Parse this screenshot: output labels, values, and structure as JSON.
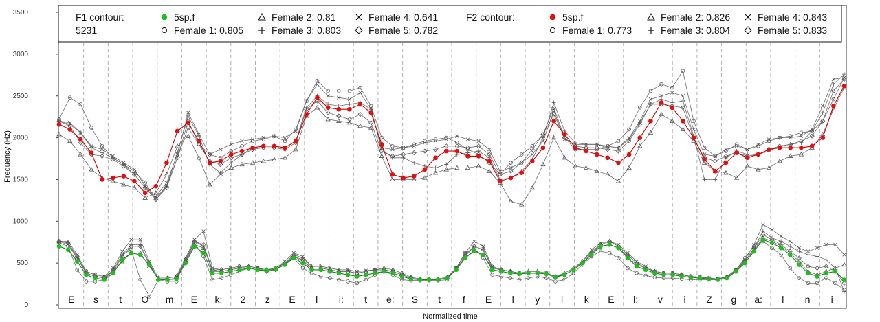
{
  "chart_data": {
    "type": "line",
    "title": "",
    "xlabel": "Normalized time",
    "ylabel": "Frequency (Hz)",
    "ylim": [
      0,
      3600
    ],
    "yticks": [
      0,
      500,
      1000,
      1500,
      2000,
      2500,
      3000,
      3500
    ],
    "xlim": [
      0,
      1
    ],
    "grid": "vertical dashed segment boundaries",
    "legend_position": "top",
    "legend": {
      "f1_heading": "F1 contour:",
      "f1_speaker": "5231",
      "f2_heading": "F2 contour:",
      "f1_entries": [
        "5sp.f",
        "Female 1: 0.805",
        "Female 2: 0.81",
        "Female 3: 0.803",
        "Female 4: 0.641",
        "Female 5: 0.782"
      ],
      "f2_entries": [
        "5sp.f",
        "Female 1: 0.773",
        "Female 2: 0.826",
        "Female 3: 0.804",
        "Female 4: 0.843",
        "Female 5: 0.833"
      ]
    },
    "segments": [
      "E",
      "s",
      "t",
      "O",
      "m",
      "E",
      "k:",
      "2",
      "z",
      "E",
      "l",
      "i:",
      "t",
      "e:",
      "S",
      "t",
      "f",
      "E",
      "l",
      "y",
      "l",
      "k",
      "E",
      "l:",
      "v",
      "i",
      "Z",
      "g",
      "a:",
      "l",
      "n",
      "i"
    ],
    "colors": {
      "f1_mean": "#22bb22",
      "f2_mean": "#dd1111",
      "female": "#555555",
      "grid": "#b0b0b0"
    },
    "series": [
      {
        "name": "5sp.f",
        "formant": "F2",
        "values": [
          2160,
          2100,
          1980,
          1820,
          1500,
          1520,
          1540,
          1480,
          1340,
          1420,
          1700,
          2080,
          2180,
          1960,
          1700,
          1720,
          1800,
          1840,
          1880,
          1900,
          1900,
          1880,
          1960,
          2280,
          2480,
          2360,
          2340,
          2340,
          2400,
          2300,
          1920,
          1560,
          1520,
          1540,
          1620,
          1760,
          1840,
          1840,
          1780,
          1780,
          1720,
          1480,
          1520,
          1580,
          1720,
          1880,
          2200,
          2040,
          1880,
          1840,
          1800,
          1760,
          1700,
          1800,
          2000,
          2200,
          2420,
          2360,
          2200,
          2000,
          1740,
          1600,
          1700,
          1820,
          1760,
          1800,
          1860,
          1880,
          1880,
          1880,
          1900,
          2000,
          2380,
          2620
        ]
      },
      {
        "name": "Female 1: 0.773",
        "formant": "F2",
        "values": [
          2220,
          2480,
          2400,
          2120,
          1900,
          1760,
          1680,
          1600,
          1460,
          1260,
          1420,
          1760,
          2120,
          1920,
          1800,
          1760,
          1840,
          1900,
          1960,
          1980,
          2020,
          1960,
          2100,
          2440,
          2680,
          2560,
          2560,
          2560,
          2600,
          2380,
          2000,
          1900,
          1880,
          1920,
          1960,
          1980,
          2000,
          1940,
          1860,
          1800,
          1700,
          1560,
          1700,
          1800,
          1900,
          2040,
          2280,
          2000,
          1860,
          1860,
          1860,
          1900,
          1960,
          2100,
          2360,
          2560,
          2640,
          2600,
          2800,
          2200,
          1880,
          1780,
          1840,
          1920,
          1860,
          1900,
          1960,
          2000,
          2020,
          2060,
          2080,
          2200,
          2460,
          2720
        ]
      },
      {
        "name": "Female 2: 0.826",
        "formant": "F2",
        "values": [
          2040,
          1960,
          1800,
          1620,
          1520,
          1480,
          1440,
          1400,
          1280,
          1340,
          1560,
          1900,
          2020,
          1760,
          1440,
          1560,
          1640,
          1680,
          1700,
          1720,
          1740,
          1760,
          1860,
          2260,
          2360,
          2220,
          2200,
          2180,
          2140,
          2120,
          1780,
          1500,
          1500,
          1500,
          1520,
          1580,
          1620,
          1640,
          1640,
          1660,
          1600,
          1460,
          1240,
          1200,
          1400,
          1680,
          2000,
          1760,
          1660,
          1640,
          1600,
          1560,
          1480,
          1640,
          1900,
          2060,
          2280,
          2200,
          2100,
          1960,
          1700,
          1600,
          1580,
          1520,
          1660,
          1620,
          1640,
          1720,
          1780,
          1800,
          1880,
          2040,
          2340,
          2600
        ]
      },
      {
        "name": "Female 3: 0.804",
        "formant": "F2",
        "values": [
          2200,
          2160,
          2060,
          1880,
          1820,
          1760,
          1680,
          1560,
          1400,
          1280,
          1420,
          1820,
          2260,
          2020,
          1680,
          1580,
          1700,
          1800,
          1880,
          1900,
          1900,
          1880,
          1960,
          2360,
          2500,
          2400,
          2380,
          2400,
          2420,
          2340,
          1860,
          1760,
          1760,
          1700,
          1660,
          1640,
          1680,
          1800,
          1820,
          1840,
          1760,
          1500,
          1520,
          1600,
          1740,
          2000,
          2420,
          2080,
          1940,
          1920,
          1920,
          1880,
          1880,
          1980,
          2180,
          2400,
          2460,
          2420,
          2440,
          2020,
          1500,
          1500,
          1760,
          1840,
          1800,
          1800,
          1840,
          1900,
          1920,
          1940,
          2080,
          2300,
          2640,
          2760
        ]
      },
      {
        "name": "Female 4: 0.843",
        "formant": "F2",
        "values": [
          2200,
          2180,
          2060,
          1900,
          1860,
          1780,
          1700,
          1620,
          1420,
          1300,
          1460,
          1800,
          2300,
          2040,
          1800,
          1860,
          1920,
          1960,
          1980,
          2000,
          2020,
          2000,
          2080,
          2440,
          2640,
          2500,
          2480,
          2460,
          2540,
          2340,
          1880,
          1860,
          1880,
          1900,
          1940,
          1960,
          1980,
          2020,
          1980,
          1960,
          1860,
          1600,
          1640,
          1700,
          1800,
          1960,
          2320,
          1980,
          1920,
          1920,
          1920,
          1900,
          1880,
          2000,
          2200,
          2460,
          2500,
          2540,
          2500,
          2100,
          1800,
          1780,
          1860,
          1900,
          1860,
          1920,
          1980,
          2000,
          2000,
          2020,
          2100,
          2380,
          2700,
          2720
        ]
      },
      {
        "name": "Female 5: 0.833",
        "formant": "F2",
        "values": [
          2200,
          2140,
          1940,
          1800,
          1780,
          1740,
          1660,
          1560,
          1400,
          1260,
          1400,
          1760,
          2200,
          1920,
          1720,
          1680,
          1760,
          1800,
          1860,
          1880,
          1880,
          1860,
          1940,
          2340,
          2440,
          2300,
          2260,
          2220,
          2280,
          2180,
          1840,
          1780,
          1800,
          1820,
          1840,
          1860,
          1900,
          1900,
          1880,
          1900,
          1800,
          1560,
          1600,
          1700,
          1860,
          2040,
          2360,
          2000,
          1900,
          1880,
          1880,
          1860,
          1840,
          1960,
          2160,
          2400,
          2400,
          2380,
          2360,
          2000,
          1760,
          1720,
          1780,
          1820,
          1780,
          1800,
          1860,
          1900,
          1920,
          1960,
          2020,
          2200,
          2560,
          2700
        ]
      },
      {
        "name": "5sp.f",
        "formant": "F1",
        "values": [
          700,
          660,
          520,
          360,
          320,
          300,
          380,
          540,
          620,
          600,
          480,
          300,
          300,
          310,
          500,
          700,
          620,
          380,
          380,
          400,
          420,
          440,
          420,
          410,
          430,
          480,
          560,
          500,
          420,
          420,
          400,
          380,
          360,
          340,
          360,
          380,
          400,
          380,
          340,
          310,
          300,
          300,
          300,
          320,
          420,
          560,
          650,
          600,
          420,
          400,
          380,
          370,
          380,
          380,
          370,
          330,
          360,
          420,
          500,
          600,
          700,
          720,
          680,
          560,
          460,
          420,
          380,
          360,
          360,
          340,
          330,
          320,
          310,
          300,
          320,
          400,
          500,
          640,
          780,
          740,
          680,
          600,
          480,
          380,
          340,
          380,
          400,
          300
        ]
      },
      {
        "name": "Female 1: 0.805",
        "formant": "F1",
        "values": [
          740,
          700,
          420,
          280,
          280,
          300,
          420,
          600,
          660,
          300,
          100,
          300,
          280,
          280,
          540,
          740,
          580,
          300,
          320,
          360,
          400,
          440,
          440,
          400,
          420,
          500,
          560,
          440,
          380,
          340,
          320,
          300,
          280,
          260,
          300,
          360,
          400,
          360,
          300,
          290,
          290,
          290,
          290,
          300,
          440,
          620,
          680,
          560,
          360,
          340,
          320,
          300,
          320,
          340,
          320,
          280,
          300,
          380,
          480,
          580,
          640,
          620,
          560,
          440,
          380,
          350,
          330,
          320,
          320,
          310,
          300,
          300,
          300,
          300,
          320,
          420,
          560,
          700,
          760,
          680,
          600,
          440,
          320,
          260,
          260,
          320,
          260,
          180
        ]
      },
      {
        "name": "Female 2: 0.81",
        "formant": "F1",
        "values": [
          760,
          720,
          560,
          400,
          360,
          340,
          400,
          520,
          620,
          620,
          460,
          320,
          320,
          340,
          520,
          720,
          680,
          420,
          420,
          440,
          460,
          460,
          440,
          420,
          440,
          500,
          580,
          520,
          440,
          440,
          420,
          400,
          400,
          380,
          400,
          420,
          440,
          420,
          380,
          330,
          310,
          310,
          310,
          330,
          440,
          560,
          640,
          600,
          440,
          420,
          400,
          380,
          400,
          400,
          380,
          340,
          380,
          440,
          520,
          640,
          720,
          760,
          700,
          600,
          500,
          440,
          400,
          380,
          380,
          360,
          340,
          330,
          320,
          310,
          340,
          420,
          520,
          660,
          800,
          760,
          700,
          620,
          520,
          400,
          360,
          400,
          440,
          480
        ]
      },
      {
        "name": "Female 3: 0.803",
        "formant": "F1",
        "values": [
          760,
          740,
          560,
          380,
          340,
          320,
          420,
          600,
          720,
          720,
          500,
          300,
          300,
          320,
          540,
          760,
          700,
          400,
          400,
          420,
          440,
          460,
          440,
          420,
          440,
          500,
          600,
          560,
          460,
          460,
          440,
          420,
          420,
          400,
          410,
          420,
          420,
          400,
          360,
          320,
          300,
          300,
          300,
          320,
          440,
          600,
          700,
          660,
          460,
          420,
          400,
          380,
          380,
          380,
          380,
          340,
          360,
          420,
          500,
          620,
          700,
          720,
          680,
          580,
          480,
          440,
          400,
          380,
          380,
          360,
          340,
          330,
          320,
          310,
          330,
          400,
          520,
          680,
          880,
          800,
          760,
          700,
          640,
          600,
          580,
          540,
          440,
          160
        ]
      },
      {
        "name": "Female 4: 0.641",
        "formant": "F1",
        "values": [
          760,
          760,
          600,
          400,
          360,
          340,
          440,
          640,
          780,
          780,
          520,
          320,
          320,
          340,
          560,
          780,
          880,
          440,
          420,
          440,
          460,
          460,
          440,
          420,
          440,
          520,
          620,
          580,
          460,
          460,
          440,
          420,
          420,
          400,
          410,
          420,
          420,
          400,
          360,
          320,
          300,
          300,
          300,
          320,
          440,
          620,
          760,
          700,
          460,
          420,
          400,
          380,
          380,
          380,
          380,
          340,
          360,
          420,
          520,
          660,
          740,
          760,
          720,
          620,
          520,
          460,
          400,
          380,
          380,
          360,
          340,
          330,
          320,
          310,
          340,
          420,
          540,
          720,
          960,
          900,
          820,
          760,
          680,
          640,
          680,
          720,
          720,
          600
        ]
      },
      {
        "name": "Female 5: 0.782",
        "formant": "F1",
        "values": [
          760,
          740,
          580,
          380,
          340,
          320,
          400,
          580,
          700,
          700,
          480,
          300,
          300,
          320,
          520,
          760,
          720,
          420,
          400,
          420,
          440,
          440,
          420,
          400,
          420,
          480,
          580,
          540,
          440,
          440,
          420,
          400,
          400,
          380,
          400,
          420,
          420,
          400,
          360,
          320,
          300,
          300,
          300,
          320,
          420,
          580,
          700,
          660,
          440,
          420,
          400,
          380,
          380,
          380,
          380,
          340,
          360,
          420,
          500,
          620,
          720,
          760,
          700,
          600,
          500,
          440,
          400,
          380,
          380,
          360,
          340,
          330,
          320,
          310,
          330,
          400,
          520,
          680,
          840,
          780,
          720,
          640,
          560,
          460,
          440,
          460,
          400,
          260
        ]
      }
    ]
  }
}
